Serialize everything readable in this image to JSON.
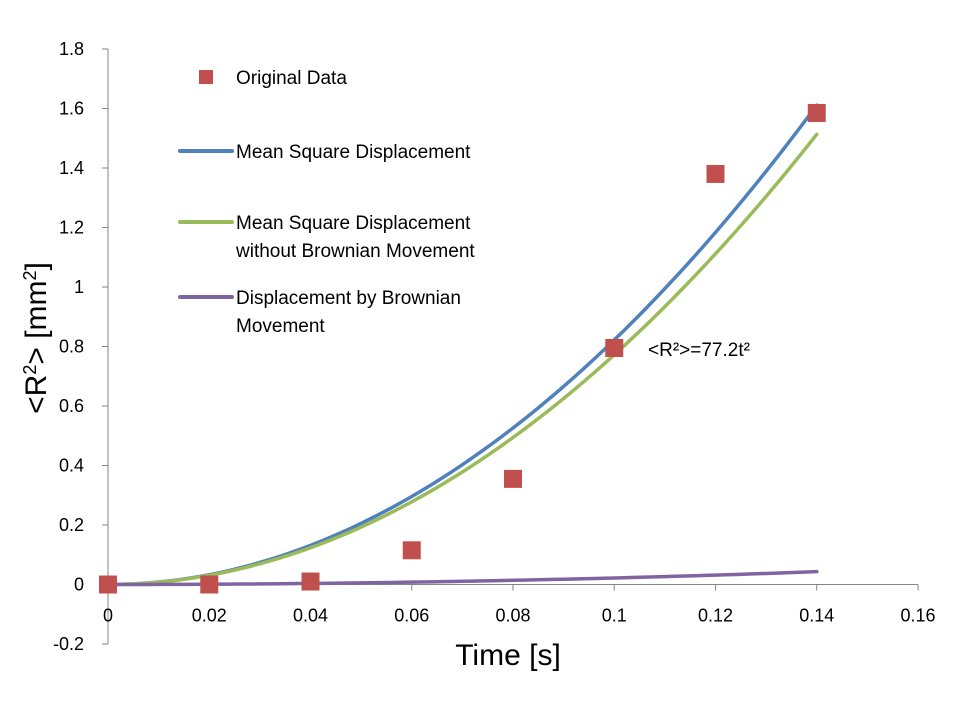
{
  "chart_data": {
    "type": "scatter",
    "title": "",
    "xlabel": "Time [s]",
    "ylabel_parts": {
      "pre": "<R",
      "sup1": "2",
      "mid": "> [mm",
      "sup2": "2",
      "post": "]"
    },
    "xlim": [
      0,
      0.16
    ],
    "ylim": [
      -0.2,
      1.8
    ],
    "x_ticks": [
      0,
      0.02,
      0.04,
      0.06,
      0.08,
      0.1,
      0.12,
      0.14,
      0.16
    ],
    "x_tick_labels": [
      "0",
      "0.02",
      "0.04",
      "0.06",
      "0.08",
      "0.1",
      "0.12",
      "0.14",
      "0.16"
    ],
    "y_ticks": [
      -0.2,
      0,
      0.2,
      0.4,
      0.6,
      0.8,
      1,
      1.2,
      1.4,
      1.6,
      1.8
    ],
    "y_tick_labels": [
      "-0.2",
      "0",
      "0.2",
      "0.4",
      "0.6",
      "0.8",
      "1",
      "1.2",
      "1.4",
      "1.6",
      "1.8"
    ],
    "grid": false,
    "legend_position": "top-left",
    "series": [
      {
        "name": "Original Data",
        "kind": "markers",
        "color": "#c0504d",
        "x": [
          0,
          0.02,
          0.04,
          0.06,
          0.08,
          0.1,
          0.12,
          0.14
        ],
        "y": [
          0,
          0,
          0.01,
          0.115,
          0.355,
          0.795,
          1.38,
          1.585
        ]
      },
      {
        "name": "Mean Square Displacement",
        "kind": "line",
        "color": "#4f81bd",
        "coef": 82.2,
        "x_range": [
          0,
          0.14
        ]
      },
      {
        "name": "Mean Square Displacement without Brownian Movement",
        "label_lines": [
          "Mean Square Displacement",
          "without Brownian Movement"
        ],
        "kind": "line",
        "color": "#9bbb59",
        "coef": 77.2,
        "x_range": [
          0,
          0.14
        ]
      },
      {
        "name": "Displacement by Brownian Movement",
        "label_lines": [
          "Displacement by Brownian",
          "Movement"
        ],
        "kind": "line",
        "color": "#8064a2",
        "coef": 2.2,
        "x_range": [
          0,
          0.14
        ]
      }
    ],
    "annotations": [
      {
        "text": "<R²>=77.2t²",
        "x": 0.1,
        "y": 0.8
      }
    ]
  }
}
